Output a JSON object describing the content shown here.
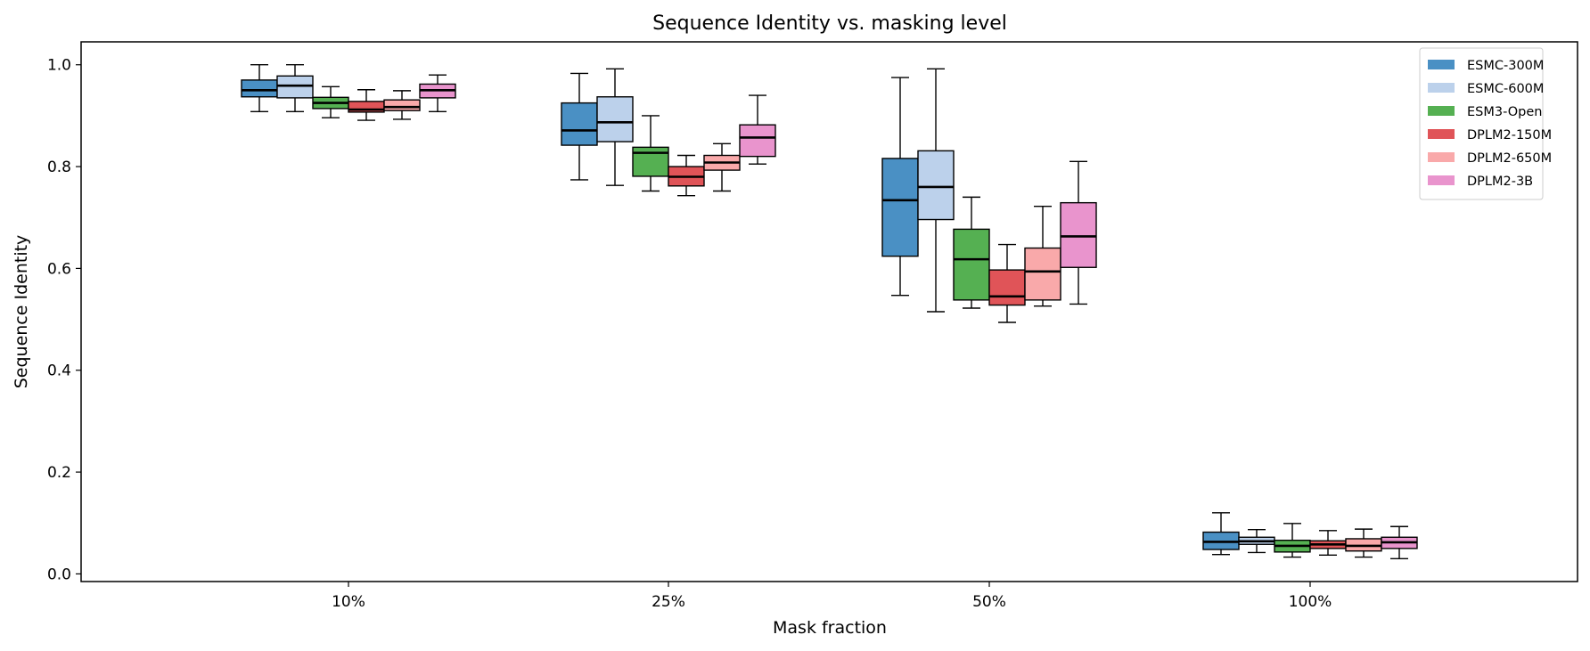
{
  "chart_data": {
    "type": "boxplot",
    "title": "Sequence Identity vs. masking level",
    "xlabel": "Mask fraction",
    "ylabel": "Sequence Identity",
    "ylim": [
      -0.015,
      1.045
    ],
    "yticks": [
      "0.0",
      "0.2",
      "0.4",
      "0.6",
      "0.8",
      "1.0"
    ],
    "grid": false,
    "legend_position": "top-right",
    "categories": [
      "10%",
      "25%",
      "50%",
      "100%"
    ],
    "series": [
      {
        "name": "ESMC-300M",
        "color": "#4a90c4",
        "boxes": [
          {
            "whislo": 0.908,
            "q1": 0.937,
            "med": 0.95,
            "q3": 0.97,
            "whishi": 1.0
          },
          {
            "whislo": 0.774,
            "q1": 0.842,
            "med": 0.871,
            "q3": 0.925,
            "whishi": 0.983
          },
          {
            "whislo": 0.547,
            "q1": 0.624,
            "med": 0.734,
            "q3": 0.816,
            "whishi": 0.975
          },
          {
            "whislo": 0.038,
            "q1": 0.048,
            "med": 0.063,
            "q3": 0.082,
            "whishi": 0.12
          }
        ]
      },
      {
        "name": "ESMC-600M",
        "color": "#bcd1eb",
        "boxes": [
          {
            "whislo": 0.908,
            "q1": 0.935,
            "med": 0.959,
            "q3": 0.978,
            "whishi": 1.0
          },
          {
            "whislo": 0.763,
            "q1": 0.849,
            "med": 0.887,
            "q3": 0.937,
            "whishi": 0.992
          },
          {
            "whislo": 0.515,
            "q1": 0.696,
            "med": 0.76,
            "q3": 0.831,
            "whishi": 0.992
          },
          {
            "whislo": 0.042,
            "q1": 0.058,
            "med": 0.064,
            "q3": 0.072,
            "whishi": 0.087
          }
        ]
      },
      {
        "name": "ESM3-Open",
        "color": "#55b052",
        "boxes": [
          {
            "whislo": 0.896,
            "q1": 0.914,
            "med": 0.925,
            "q3": 0.936,
            "whishi": 0.957
          },
          {
            "whislo": 0.752,
            "q1": 0.781,
            "med": 0.827,
            "q3": 0.838,
            "whishi": 0.9
          },
          {
            "whislo": 0.522,
            "q1": 0.538,
            "med": 0.618,
            "q3": 0.677,
            "whishi": 0.74
          },
          {
            "whislo": 0.033,
            "q1": 0.043,
            "med": 0.055,
            "q3": 0.066,
            "whishi": 0.099
          }
        ]
      },
      {
        "name": "DPLM2-150M",
        "color": "#e05458",
        "boxes": [
          {
            "whislo": 0.891,
            "q1": 0.907,
            "med": 0.912,
            "q3": 0.928,
            "whishi": 0.951
          },
          {
            "whislo": 0.743,
            "q1": 0.762,
            "med": 0.78,
            "q3": 0.8,
            "whishi": 0.822
          },
          {
            "whislo": 0.494,
            "q1": 0.528,
            "med": 0.545,
            "q3": 0.597,
            "whishi": 0.647
          },
          {
            "whislo": 0.037,
            "q1": 0.05,
            "med": 0.058,
            "q3": 0.065,
            "whishi": 0.085
          }
        ]
      },
      {
        "name": "DPLM2-650M",
        "color": "#f9a9aa",
        "boxes": [
          {
            "whislo": 0.893,
            "q1": 0.91,
            "med": 0.917,
            "q3": 0.931,
            "whishi": 0.949
          },
          {
            "whislo": 0.752,
            "q1": 0.793,
            "med": 0.808,
            "q3": 0.822,
            "whishi": 0.845
          },
          {
            "whislo": 0.526,
            "q1": 0.538,
            "med": 0.594,
            "q3": 0.64,
            "whishi": 0.722
          },
          {
            "whislo": 0.033,
            "q1": 0.045,
            "med": 0.055,
            "q3": 0.069,
            "whishi": 0.088
          }
        ]
      },
      {
        "name": "DPLM2-3B",
        "color": "#e994cd",
        "boxes": [
          {
            "whislo": 0.908,
            "q1": 0.935,
            "med": 0.95,
            "q3": 0.962,
            "whishi": 0.98
          },
          {
            "whislo": 0.805,
            "q1": 0.82,
            "med": 0.857,
            "q3": 0.882,
            "whishi": 0.94
          },
          {
            "whislo": 0.53,
            "q1": 0.602,
            "med": 0.663,
            "q3": 0.729,
            "whishi": 0.81
          },
          {
            "whislo": 0.03,
            "q1": 0.05,
            "med": 0.062,
            "q3": 0.072,
            "whishi": 0.093
          }
        ]
      }
    ]
  }
}
